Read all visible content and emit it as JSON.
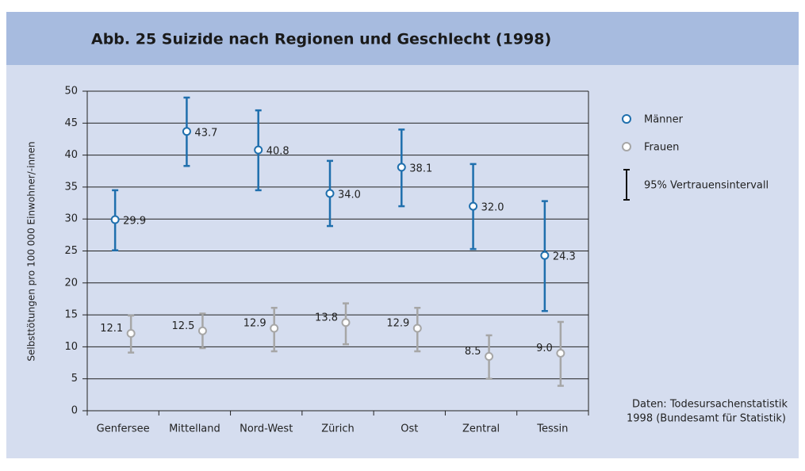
{
  "chart_data": {
    "type": "errorbar",
    "title": "Abb. 25  Suizide nach Regionen und Geschlecht (1998)",
    "y_label": "Selbsttötungen pro 100 000 Einwohner/-innen",
    "categories": [
      "Genfersee",
      "Mittelland",
      "Nord-West",
      "Zürich",
      "Ost",
      "Zentral",
      "Tessin"
    ],
    "series": [
      {
        "name": "Männer",
        "color": "#1f6fad",
        "values": [
          29.9,
          43.7,
          40.8,
          34.0,
          38.1,
          32.0,
          24.3
        ],
        "value_labels": [
          "29.9",
          "43.7",
          "40.8",
          "34.0",
          "38.1",
          "32.0",
          "24.3"
        ],
        "lower": [
          25.1,
          38.3,
          34.5,
          28.9,
          32.0,
          25.3,
          15.6
        ],
        "upper": [
          34.5,
          49.0,
          47.0,
          39.1,
          44.0,
          38.6,
          32.8
        ]
      },
      {
        "name": "Frauen",
        "color": "#a6a6a6",
        "values": [
          12.1,
          12.5,
          12.9,
          13.8,
          12.9,
          8.5,
          9.0
        ],
        "value_labels": [
          "12.1",
          "12.5",
          "12.9",
          "13.8",
          "12.9",
          "8.5",
          "9.0"
        ],
        "lower": [
          9.1,
          9.8,
          9.3,
          10.4,
          9.3,
          5.0,
          3.9
        ],
        "upper": [
          14.9,
          15.2,
          16.1,
          16.8,
          16.1,
          11.8,
          13.9
        ]
      }
    ],
    "ci_label": "95% Vertrauensintervall",
    "note": [
      "Daten: Todesursachenstatistik",
      "1998 (Bundesamt für Statistik)"
    ],
    "ylim": [
      0,
      50
    ],
    "yticks": [
      0,
      5,
      10,
      15,
      20,
      25,
      30,
      35,
      40,
      45,
      50
    ],
    "grid": true
  }
}
